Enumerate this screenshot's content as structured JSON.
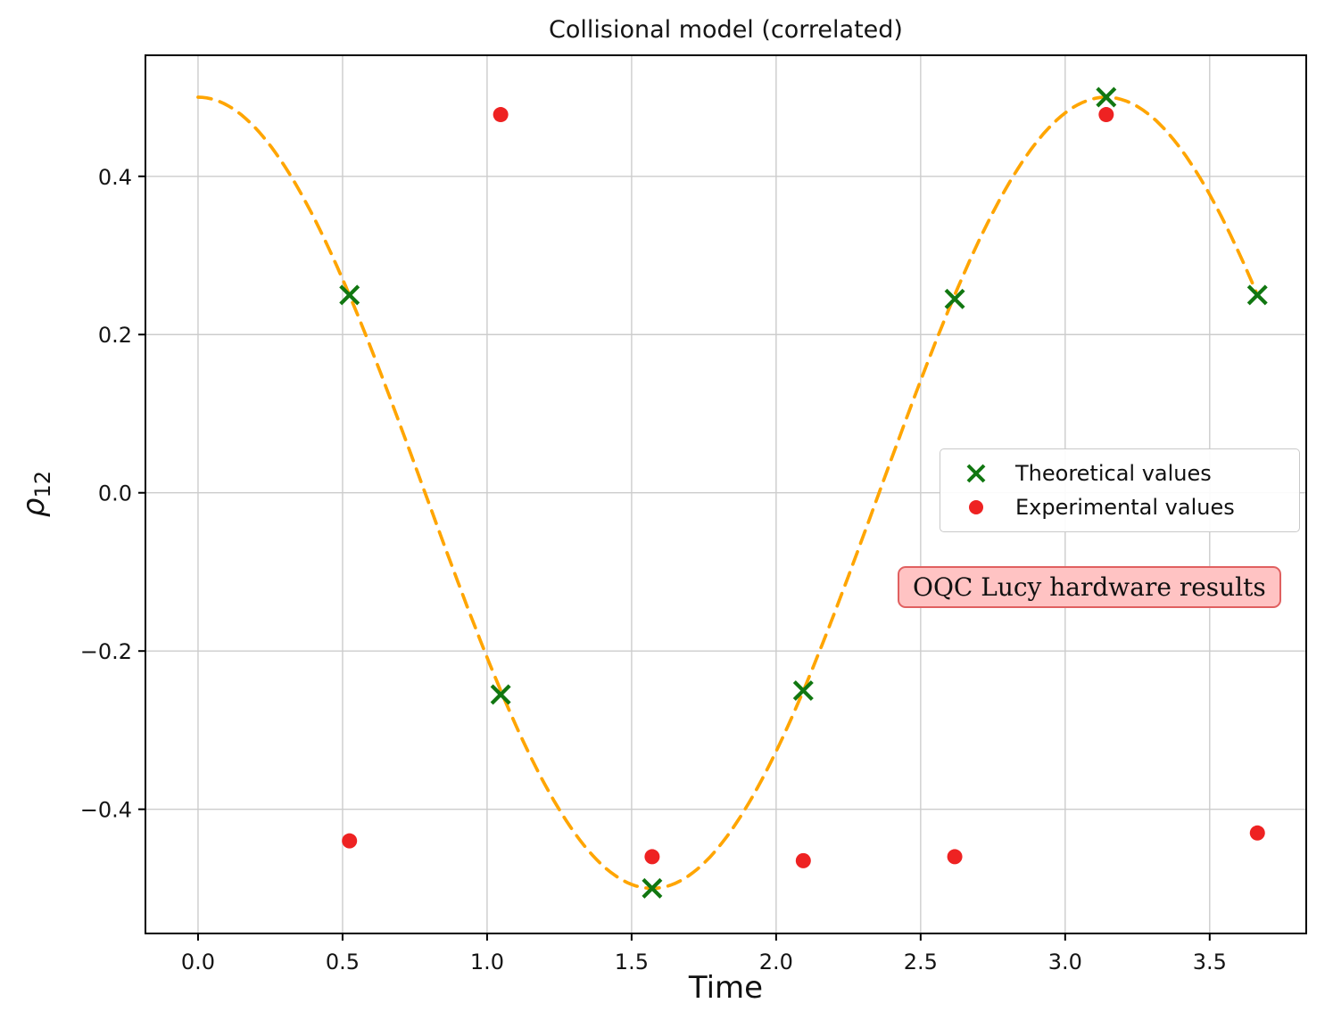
{
  "figure": {
    "background": "#ffffff"
  },
  "chart_data": {
    "type": "scatter",
    "title": "Collisional model (correlated)",
    "xlabel": "Time",
    "ylabel": "ρ12",
    "ylabel_base": "ρ",
    "ylabel_sub": "12",
    "xlim": [
      -0.182,
      3.834
    ],
    "ylim": [
      -0.557,
      0.553
    ],
    "x_ticks": [
      0.0,
      0.5,
      1.0,
      1.5,
      2.0,
      2.5,
      3.0,
      3.5
    ],
    "y_ticks": [
      -0.4,
      -0.2,
      0.0,
      0.2,
      0.4
    ],
    "grid": true,
    "grid_color": "#cccccc",
    "model_curve": {
      "description": "y = 0.5·cos(2t), dashed",
      "amplitude": 0.5,
      "angular_frequency": 2,
      "t_range": [
        0,
        3.665
      ],
      "color": "#ffa500",
      "style": "dashed"
    },
    "series": [
      {
        "name": "Theoretical values",
        "marker": "x",
        "color": "#117711",
        "x": [
          0.524,
          1.047,
          1.571,
          2.094,
          2.618,
          3.142,
          3.665
        ],
        "y": [
          0.25,
          -0.255,
          -0.5,
          -0.25,
          0.245,
          0.5,
          0.25
        ]
      },
      {
        "name": "Experimental values",
        "marker": "circle",
        "color": "#ee2222",
        "x": [
          0.524,
          1.047,
          1.571,
          2.094,
          2.618,
          3.142,
          3.665
        ],
        "y": [
          -0.44,
          0.478,
          -0.46,
          -0.465,
          -0.46,
          0.478,
          -0.43
        ]
      }
    ],
    "legend": {
      "position": "center right",
      "entries": [
        "Theoretical values",
        "Experimental values"
      ]
    },
    "annotation": {
      "text": "OQC Lucy hardware results",
      "bg": "#ffc3c3",
      "border": "#e06060"
    }
  }
}
